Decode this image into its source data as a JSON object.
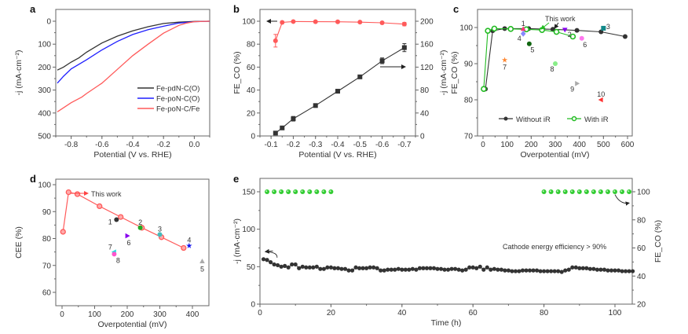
{
  "figure": {
    "panel_labels": [
      "a",
      "b",
      "c",
      "d",
      "e"
    ]
  },
  "chart_data": [
    {
      "id": "a",
      "type": "line",
      "title": "",
      "xlabel": "Potential (V vs. RHE)",
      "ylabel": "-j (mA·cm⁻²)",
      "xlim": [
        -0.9,
        0.1
      ],
      "ylim": [
        500,
        0
      ],
      "y_inverted": true,
      "xticks": [
        -0.8,
        -0.6,
        -0.4,
        -0.2,
        0.0
      ],
      "xtick_labels": [
        "-0.8",
        "-0.6",
        "-0.4",
        "-0.2",
        "0.0"
      ],
      "yticks": [
        0,
        100,
        200,
        300,
        400,
        500
      ],
      "ytick_labels": [
        "0",
        "100",
        "200",
        "300",
        "400",
        "500"
      ],
      "legend_position": "bottom-right",
      "series": [
        {
          "name": "Fe-pdN-C(O)",
          "color": "#333333",
          "x": [
            -0.89,
            -0.85,
            -0.8,
            -0.75,
            -0.7,
            -0.6,
            -0.5,
            -0.4,
            -0.3,
            -0.2,
            -0.1,
            0.0,
            0.1
          ],
          "y": [
            213,
            200,
            178,
            160,
            135,
            95,
            65,
            42,
            24,
            10,
            4,
            1,
            0
          ]
        },
        {
          "name": "Fe-poN-C(O)",
          "color": "#1f1fff",
          "x": [
            -0.89,
            -0.85,
            -0.8,
            -0.7,
            -0.6,
            -0.5,
            -0.4,
            -0.3,
            -0.2,
            -0.1,
            0.0,
            0.1
          ],
          "y": [
            270,
            240,
            208,
            168,
            125,
            88,
            58,
            37,
            22,
            8,
            2,
            0
          ]
        },
        {
          "name": "Fe-poN-C/Fe",
          "color": "#ff5a5a",
          "x": [
            -0.89,
            -0.8,
            -0.73,
            -0.7,
            -0.6,
            -0.5,
            -0.4,
            -0.3,
            -0.2,
            -0.1,
            -0.05,
            0.0,
            0.1
          ],
          "y": [
            395,
            355,
            330,
            315,
            270,
            210,
            150,
            100,
            52,
            18,
            8,
            2,
            0
          ]
        }
      ]
    },
    {
      "id": "b",
      "type": "line",
      "title": "",
      "xlabel": "Potential (V vs. RHE)",
      "ylabel": "FE_CO (%)",
      "ylabel_right": "-j (mA·cm⁻²)",
      "xlim": [
        -0.05,
        -0.75
      ],
      "ylim": [
        0,
        110
      ],
      "ylim_right": [
        0,
        220
      ],
      "xticks": [
        -0.1,
        -0.2,
        -0.3,
        -0.4,
        -0.5,
        -0.6,
        -0.7
      ],
      "xtick_labels": [
        "-0.1",
        "-0.2",
        "-0.3",
        "-0.4",
        "-0.5",
        "-0.6",
        "-0.7"
      ],
      "yticks": [
        0,
        20,
        40,
        60,
        80,
        100
      ],
      "ytick_labels": [
        "0",
        "20",
        "40",
        "60",
        "80",
        "100"
      ],
      "yticks_right": [
        0,
        40,
        80,
        120,
        160,
        200
      ],
      "ytick_labels_right": [
        "0",
        "40",
        "80",
        "120",
        "160",
        "200"
      ],
      "series": [
        {
          "name": "FE_CO",
          "axis": "left",
          "color": "#ff5a5a",
          "x": [
            -0.12,
            -0.15,
            -0.2,
            -0.3,
            -0.4,
            -0.5,
            -0.6,
            -0.7
          ],
          "y": [
            83,
            99,
            99.7,
            99.6,
            99.5,
            99.2,
            98.6,
            97.5
          ],
          "err": [
            5.5,
            0.8,
            0.5,
            0.5,
            0.5,
            0.5,
            1,
            1.5
          ]
        },
        {
          "name": "-j",
          "axis": "right",
          "color": "#333333",
          "x": [
            -0.12,
            -0.15,
            -0.2,
            -0.3,
            -0.4,
            -0.5,
            -0.6,
            -0.7
          ],
          "y": [
            5,
            14,
            30,
            53,
            78,
            103,
            131,
            154
          ],
          "err": [
            2,
            3,
            4,
            2,
            3,
            2,
            5,
            7
          ]
        }
      ],
      "annotations": [
        "arrow-left pointing to FE_CO axis",
        "arrow-right pointing to -j axis"
      ]
    },
    {
      "id": "c",
      "type": "scatter",
      "title": "",
      "xlabel": "Overpotential (mV)",
      "ylabel": "FE_CO (%)",
      "xlim": [
        -10,
        620
      ],
      "ylim": [
        70,
        105
      ],
      "xticks": [
        0,
        100,
        200,
        300,
        400,
        500,
        600
      ],
      "xtick_labels": [
        "0",
        "100",
        "200",
        "300",
        "400",
        "500",
        "600"
      ],
      "yticks": [
        70,
        80,
        90,
        100
      ],
      "ytick_labels": [
        "70",
        "80",
        "90",
        "100"
      ],
      "legend_position": "bottom",
      "series": [
        {
          "name": "Without iR",
          "color": "#333333",
          "x": [
            10,
            40,
            90,
            190,
            290,
            390,
            490,
            590
          ],
          "y": [
            83,
            99.1,
            99.7,
            99.7,
            99.5,
            99.2,
            98.8,
            97.5
          ]
        },
        {
          "name": "With iR",
          "color": "#22bb22",
          "x": [
            3,
            20,
            47,
            115,
            180,
            245,
            305,
            373
          ],
          "y": [
            83,
            99.1,
            99.7,
            99.6,
            99.5,
            99.3,
            98.8,
            97.5
          ]
        }
      ],
      "references": [
        {
          "label": "1",
          "x": 167,
          "y": 99.6,
          "color": "#ff3377",
          "marker": "triangle-up"
        },
        {
          "label": "2",
          "x": 340,
          "y": 99.4,
          "color": "#8800ee",
          "marker": "triangle-down"
        },
        {
          "label": "3",
          "x": 500,
          "y": 99.8,
          "color": "#118888",
          "marker": "square"
        },
        {
          "label": "4",
          "x": 167,
          "y": 98.3,
          "color": "#8888ff",
          "marker": "diamond"
        },
        {
          "label": "5",
          "x": 192,
          "y": 95.5,
          "color": "#116611",
          "marker": "circle"
        },
        {
          "label": "6",
          "x": 410,
          "y": 97,
          "color": "#ff77ee",
          "marker": "circle"
        },
        {
          "label": "7",
          "x": 90,
          "y": 91,
          "color": "#ff8833",
          "marker": "star"
        },
        {
          "label": "8",
          "x": 300,
          "y": 90,
          "color": "#88ee88",
          "marker": "circle"
        },
        {
          "label": "9",
          "x": 390,
          "y": 84.5,
          "color": "#aaaaaa",
          "marker": "triangle-right"
        },
        {
          "label": "10",
          "x": 490,
          "y": 80,
          "color": "#ff3333",
          "marker": "triangle-left"
        }
      ],
      "annotation": "This work"
    },
    {
      "id": "d",
      "type": "scatter",
      "title": "",
      "xlabel": "Overpotential (mV)",
      "ylabel": "CEE (%)",
      "xlim": [
        -20,
        440
      ],
      "ylim": [
        55,
        101
      ],
      "xticks": [
        0,
        100,
        200,
        300,
        400
      ],
      "xtick_labels": [
        "0",
        "100",
        "200",
        "300",
        "400"
      ],
      "yticks": [
        60,
        70,
        80,
        90,
        100
      ],
      "ytick_labels": [
        "60",
        "70",
        "80",
        "90",
        "100"
      ],
      "series": [
        {
          "name": "This work",
          "color": "#ff5a5a",
          "x": [
            3,
            20,
            47,
            115,
            180,
            245,
            305,
            373
          ],
          "y": [
            82.5,
            97.2,
            96.5,
            92,
            88,
            84,
            80.5,
            76.5
          ]
        }
      ],
      "references": [
        {
          "label": "1",
          "x": 167,
          "y": 87,
          "color": "#333333",
          "marker": "circle"
        },
        {
          "label": "2",
          "x": 240,
          "y": 84,
          "color": "#22aa22",
          "marker": "circle"
        },
        {
          "label": "3",
          "x": 300,
          "y": 81.5,
          "color": "#44bbbb",
          "marker": "circle"
        },
        {
          "label": "4",
          "x": 390,
          "y": 77.3,
          "color": "#1111ee",
          "marker": "star"
        },
        {
          "label": "5",
          "x": 430,
          "y": 71.5,
          "color": "#aaaaaa",
          "marker": "triangle-up"
        },
        {
          "label": "6",
          "x": 200,
          "y": 81,
          "color": "#8800ee",
          "marker": "triangle-right"
        },
        {
          "label": "7",
          "x": 160,
          "y": 75,
          "color": "#22dddd",
          "marker": "triangle-left"
        },
        {
          "label": "8",
          "x": 160,
          "y": 74.2,
          "color": "#ff55cc",
          "marker": "circle"
        }
      ],
      "annotation": "This work"
    },
    {
      "id": "e",
      "type": "scatter",
      "title": "",
      "xlabel": "Time (h)",
      "ylabel": "-j (mA·cm⁻²)",
      "ylabel_right": "FE_CO (%)",
      "xlim": [
        0,
        105
      ],
      "ylim": [
        0,
        170
      ],
      "ylim_right": [
        20,
        108
      ],
      "xticks": [
        0,
        20,
        40,
        60,
        80,
        100
      ],
      "xtick_labels": [
        "0",
        "20",
        "40",
        "60",
        "80",
        "100"
      ],
      "yticks": [
        0,
        50,
        100,
        150
      ],
      "ytick_labels": [
        "0",
        "50",
        "100",
        "150"
      ],
      "yticks_right": [
        20,
        40,
        60,
        80,
        100
      ],
      "ytick_labels_right": [
        "20",
        "40",
        "60",
        "80",
        "100"
      ],
      "series": [
        {
          "name": "-j",
          "axis": "left",
          "color": "#333333",
          "x": [
            1,
            2,
            3,
            4,
            5,
            6,
            7,
            8,
            9,
            10,
            11,
            12,
            13,
            14,
            15,
            16,
            17,
            18,
            19,
            20,
            21,
            22,
            23,
            24,
            25,
            26,
            27,
            28,
            29,
            30,
            31,
            32,
            33,
            34,
            35,
            36,
            37,
            38,
            39,
            40,
            41,
            42,
            43,
            44,
            45,
            46,
            47,
            48,
            49,
            50,
            51,
            52,
            53,
            54,
            55,
            56,
            57,
            58,
            59,
            60,
            61,
            62,
            63,
            64,
            65,
            66,
            67,
            68,
            69,
            70,
            71,
            72,
            73,
            74,
            75,
            76,
            77,
            78,
            79,
            80,
            81,
            82,
            83,
            84,
            85,
            86,
            87,
            88,
            89,
            90,
            91,
            92,
            93,
            94,
            95,
            96,
            97,
            98,
            99,
            100,
            101,
            102,
            103,
            104,
            105
          ],
          "y": [
            60,
            59,
            56,
            53,
            52,
            50,
            51,
            49,
            53,
            53,
            48,
            50,
            49,
            49,
            49,
            50,
            47,
            47,
            49,
            49,
            48,
            48,
            47,
            47,
            45,
            45,
            49,
            48,
            48,
            48,
            49,
            49,
            48,
            45,
            45,
            46,
            46,
            46,
            47,
            46,
            46,
            46,
            47,
            46,
            48,
            48,
            48,
            48,
            48,
            47,
            47,
            46,
            46,
            47,
            47,
            46,
            45,
            46,
            49,
            49,
            48,
            50,
            46,
            49,
            46,
            47,
            46,
            46,
            45,
            45,
            44,
            44,
            44,
            45,
            45,
            45,
            45,
            45,
            44,
            44,
            44,
            44,
            44,
            44,
            43,
            45,
            46,
            49,
            49,
            48,
            48,
            48,
            47,
            47,
            46,
            46,
            46,
            45,
            45,
            45,
            45,
            44,
            44,
            44,
            44
          ]
        },
        {
          "name": "FE_CO",
          "axis": "right",
          "color": "#33cc33",
          "x": [
            2,
            4,
            6,
            8,
            10,
            12,
            14,
            16,
            18,
            20,
            80,
            82,
            84,
            86,
            88,
            90,
            92,
            94,
            96,
            98,
            100,
            102,
            104
          ],
          "y": [
            100,
            100,
            100,
            100,
            100,
            100,
            100,
            100,
            100,
            100,
            100,
            100,
            100,
            100,
            100,
            100,
            100,
            100,
            100,
            100,
            100,
            100,
            100
          ]
        }
      ],
      "annotation": "Cathode energy efficiency > 90%"
    }
  ]
}
